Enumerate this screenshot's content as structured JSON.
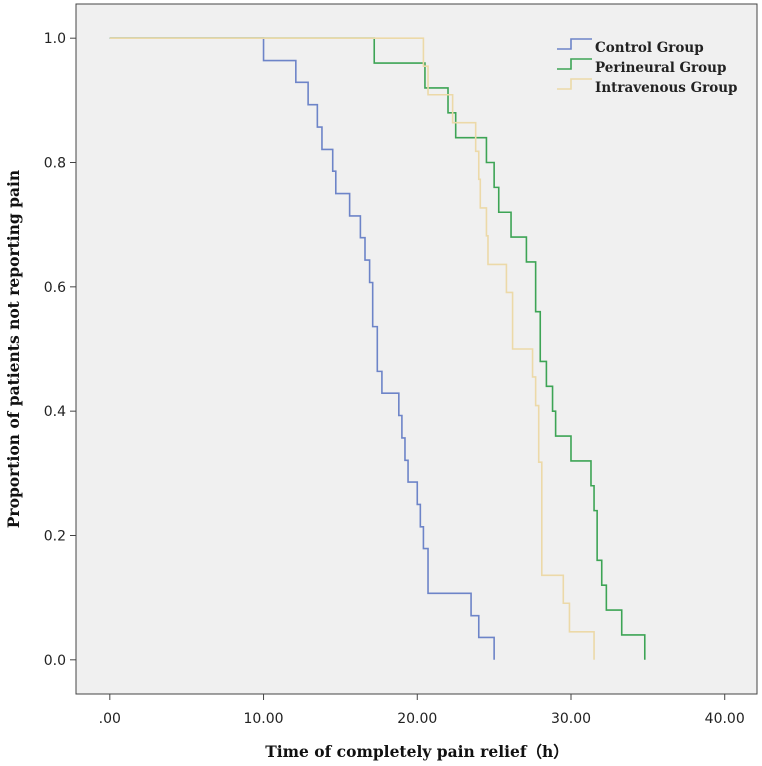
{
  "chart_data": {
    "type": "line",
    "step": true,
    "title": "",
    "xlabel": "Time of completely pain relief（h）",
    "ylabel": "Proportion of patients not reporting pain",
    "xlim": [
      -2.2,
      42.1
    ],
    "ylim": [
      -0.055,
      1.055
    ],
    "x_ticks": [
      {
        "value": 0,
        "label": ".00"
      },
      {
        "value": 10,
        "label": "10.00"
      },
      {
        "value": 20,
        "label": "20.00"
      },
      {
        "value": 30,
        "label": "30.00"
      },
      {
        "value": 40,
        "label": "40.00"
      }
    ],
    "y_ticks": [
      {
        "value": 0,
        "label": "0.0"
      },
      {
        "value": 0.2,
        "label": "0.2"
      },
      {
        "value": 0.4,
        "label": "0.4"
      },
      {
        "value": 0.6,
        "label": "0.6"
      },
      {
        "value": 0.8,
        "label": "0.8"
      },
      {
        "value": 1.0,
        "label": "1.0"
      }
    ],
    "grid": false,
    "legend_position": "top-right",
    "series": [
      {
        "name": "Control Group",
        "color": "#6d84c8",
        "points": [
          [
            0,
            1.0
          ],
          [
            10.0,
            1.0
          ],
          [
            10.0,
            0.964
          ],
          [
            12.1,
            0.964
          ],
          [
            12.1,
            0.929
          ],
          [
            12.9,
            0.929
          ],
          [
            12.9,
            0.893
          ],
          [
            13.5,
            0.893
          ],
          [
            13.5,
            0.857
          ],
          [
            13.8,
            0.857
          ],
          [
            13.8,
            0.821
          ],
          [
            14.5,
            0.821
          ],
          [
            14.5,
            0.786
          ],
          [
            14.7,
            0.786
          ],
          [
            14.7,
            0.75
          ],
          [
            15.6,
            0.75
          ],
          [
            15.6,
            0.714
          ],
          [
            16.3,
            0.714
          ],
          [
            16.3,
            0.679
          ],
          [
            16.6,
            0.679
          ],
          [
            16.6,
            0.643
          ],
          [
            16.9,
            0.643
          ],
          [
            16.9,
            0.607
          ],
          [
            17.1,
            0.607
          ],
          [
            17.1,
            0.536
          ],
          [
            17.4,
            0.536
          ],
          [
            17.4,
            0.464
          ],
          [
            17.7,
            0.464
          ],
          [
            17.7,
            0.429
          ],
          [
            18.8,
            0.429
          ],
          [
            18.8,
            0.393
          ],
          [
            19.0,
            0.393
          ],
          [
            19.0,
            0.357
          ],
          [
            19.2,
            0.357
          ],
          [
            19.2,
            0.321
          ],
          [
            19.4,
            0.321
          ],
          [
            19.4,
            0.286
          ],
          [
            20.0,
            0.286
          ],
          [
            20.0,
            0.25
          ],
          [
            20.2,
            0.25
          ],
          [
            20.2,
            0.214
          ],
          [
            20.4,
            0.214
          ],
          [
            20.4,
            0.179
          ],
          [
            20.7,
            0.179
          ],
          [
            20.7,
            0.107
          ],
          [
            23.5,
            0.107
          ],
          [
            23.5,
            0.071
          ],
          [
            24.0,
            0.071
          ],
          [
            24.0,
            0.036
          ],
          [
            25.0,
            0.036
          ],
          [
            25.0,
            0.0
          ]
        ]
      },
      {
        "name": "Perineural Group",
        "color": "#3da455",
        "points": [
          [
            0,
            1.0
          ],
          [
            17.2,
            1.0
          ],
          [
            17.2,
            0.96
          ],
          [
            20.5,
            0.96
          ],
          [
            20.5,
            0.92
          ],
          [
            22.0,
            0.92
          ],
          [
            22.0,
            0.88
          ],
          [
            22.5,
            0.88
          ],
          [
            22.5,
            0.84
          ],
          [
            24.5,
            0.84
          ],
          [
            24.5,
            0.8
          ],
          [
            25.0,
            0.8
          ],
          [
            25.0,
            0.76
          ],
          [
            25.3,
            0.76
          ],
          [
            25.3,
            0.72
          ],
          [
            26.1,
            0.72
          ],
          [
            26.1,
            0.68
          ],
          [
            27.1,
            0.68
          ],
          [
            27.1,
            0.64
          ],
          [
            27.7,
            0.64
          ],
          [
            27.7,
            0.56
          ],
          [
            28.0,
            0.56
          ],
          [
            28.0,
            0.48
          ],
          [
            28.4,
            0.48
          ],
          [
            28.4,
            0.44
          ],
          [
            28.8,
            0.44
          ],
          [
            28.8,
            0.4
          ],
          [
            29.0,
            0.4
          ],
          [
            29.0,
            0.36
          ],
          [
            30.0,
            0.36
          ],
          [
            30.0,
            0.32
          ],
          [
            31.3,
            0.32
          ],
          [
            31.3,
            0.28
          ],
          [
            31.5,
            0.28
          ],
          [
            31.5,
            0.24
          ],
          [
            31.7,
            0.24
          ],
          [
            31.7,
            0.16
          ],
          [
            32.0,
            0.16
          ],
          [
            32.0,
            0.12
          ],
          [
            32.3,
            0.12
          ],
          [
            32.3,
            0.08
          ],
          [
            33.3,
            0.08
          ],
          [
            33.3,
            0.04
          ],
          [
            34.8,
            0.04
          ],
          [
            34.8,
            0.0
          ]
        ]
      },
      {
        "name": "Intravenous Group",
        "color": "#ecd9a8",
        "points": [
          [
            0,
            1.0
          ],
          [
            20.4,
            1.0
          ],
          [
            20.4,
            0.955
          ],
          [
            20.7,
            0.955
          ],
          [
            20.7,
            0.909
          ],
          [
            22.3,
            0.909
          ],
          [
            22.3,
            0.864
          ],
          [
            23.8,
            0.864
          ],
          [
            23.8,
            0.818
          ],
          [
            24.0,
            0.818
          ],
          [
            24.0,
            0.773
          ],
          [
            24.1,
            0.773
          ],
          [
            24.1,
            0.727
          ],
          [
            24.5,
            0.727
          ],
          [
            24.5,
            0.682
          ],
          [
            24.6,
            0.682
          ],
          [
            24.6,
            0.636
          ],
          [
            25.8,
            0.636
          ],
          [
            25.8,
            0.591
          ],
          [
            26.2,
            0.591
          ],
          [
            26.2,
            0.5
          ],
          [
            27.5,
            0.5
          ],
          [
            27.5,
            0.455
          ],
          [
            27.7,
            0.455
          ],
          [
            27.7,
            0.409
          ],
          [
            27.9,
            0.409
          ],
          [
            27.9,
            0.318
          ],
          [
            28.1,
            0.318
          ],
          [
            28.1,
            0.136
          ],
          [
            29.5,
            0.136
          ],
          [
            29.5,
            0.091
          ],
          [
            29.9,
            0.091
          ],
          [
            29.9,
            0.045
          ],
          [
            31.5,
            0.045
          ],
          [
            31.5,
            0.0
          ]
        ]
      }
    ]
  }
}
